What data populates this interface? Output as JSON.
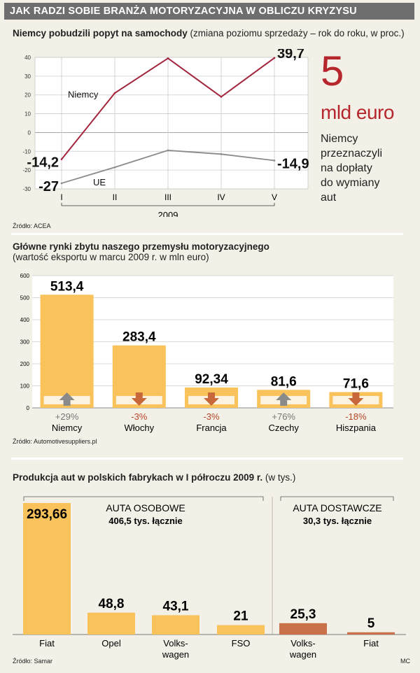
{
  "title": "JAK RADZI SOBIE BRANŻA MOTORYZACYJNA W OBLICZU KRYZYSU",
  "credit": "MC",
  "section1": {
    "title_bold": "Niemcy pobudzili popyt na samochody",
    "title_normal": " (zmiana poziomu sprzedaży – rok do roku, w proc.)",
    "source": "Źródło: ACEA",
    "big_number": "5",
    "big_unit": "mld euro",
    "note_lines": [
      "Niemcy",
      "przeznaczyli",
      "na dopłaty",
      "do wymiany",
      "aut"
    ]
  },
  "section2": {
    "title_line1": "Główne rynki zbytu naszego przemysłu motoryzacyjnego",
    "title_line2": "(wartość eksportu w marcu 2009 r. w mln euro)",
    "source": "Źródło: Automotivesuppliers.pl"
  },
  "section3": {
    "title_bold": "Produkcja aut w polskich fabrykach w I półroczu 2009 r.",
    "title_normal": " (w tys.)",
    "source": "Źródło: Samar",
    "group1_title": "AUTA OSOBOWE",
    "group1_total": "406,5 tys. łącznie",
    "group2_title": "AUTA DOSTAWCZE",
    "group2_total": "30,3 tys. łącznie"
  },
  "chart_data": [
    {
      "type": "line",
      "title": "Niemcy pobudzili popyt na samochody",
      "x": [
        "I",
        "II",
        "III",
        "IV",
        "V"
      ],
      "xlabel": "2009",
      "ylim": [
        -30,
        40
      ],
      "yticks": [
        40,
        30,
        20,
        10,
        0,
        -10,
        -20,
        -30
      ],
      "series": [
        {
          "name": "Niemcy",
          "values": [
            -14.2,
            21,
            39.5,
            19,
            39.7
          ],
          "color": "#a3243d",
          "labels": [
            {
              "i": 0,
              "text": "-14,2"
            },
            {
              "i": 4,
              "text": "39,7"
            }
          ]
        },
        {
          "name": "UE",
          "values": [
            -27,
            -18.5,
            -9.5,
            -11.5,
            -14.9
          ],
          "color": "#8a8a8a",
          "labels": [
            {
              "i": 0,
              "text": "-27"
            },
            {
              "i": 4,
              "text": "-14,9"
            }
          ]
        }
      ]
    },
    {
      "type": "bar",
      "title": "Główne rynki zbytu naszego przemysłu motoryzacyjnego",
      "categories": [
        "Niemcy",
        "Włochy",
        "Francja",
        "Czechy",
        "Hiszpania"
      ],
      "values": [
        513.4,
        283.4,
        92.34,
        81.6,
        71.6
      ],
      "value_labels": [
        "513,4",
        "283,4",
        "92,34",
        "81,6",
        "71,6"
      ],
      "changes": [
        "+29%",
        "-3%",
        "-3%",
        "+76%",
        "-18%"
      ],
      "directions": [
        "up",
        "down",
        "down",
        "up",
        "down"
      ],
      "ylim": [
        0,
        600
      ],
      "yticks": [
        600,
        500,
        400,
        300,
        200,
        100,
        0
      ],
      "colors": {
        "bar": "#f9c25a",
        "up": "#8a8a8a",
        "down": "#c8683a"
      }
    },
    {
      "type": "bar",
      "title": "Produkcja aut w polskich fabrykach w I półroczu 2009 r.",
      "categories": [
        "Fiat",
        "Opel",
        "Volks-|wagen",
        "FSO",
        "Volks-|wagen",
        "Fiat"
      ],
      "values": [
        293.66,
        48.8,
        43.1,
        21,
        25.3,
        5
      ],
      "value_labels": [
        "293,66",
        "48,8",
        "43,1",
        "21",
        "25,3",
        "5"
      ],
      "groups": [
        "AUTA OSOBOWE",
        "AUTA OSOBOWE",
        "AUTA OSOBOWE",
        "AUTA OSOBOWE",
        "AUTA DOSTAWCZE",
        "AUTA DOSTAWCZE"
      ],
      "colors": [
        "#f9c25a",
        "#f9c25a",
        "#f9c25a",
        "#f9c25a",
        "#c9724a",
        "#c9724a"
      ]
    }
  ]
}
